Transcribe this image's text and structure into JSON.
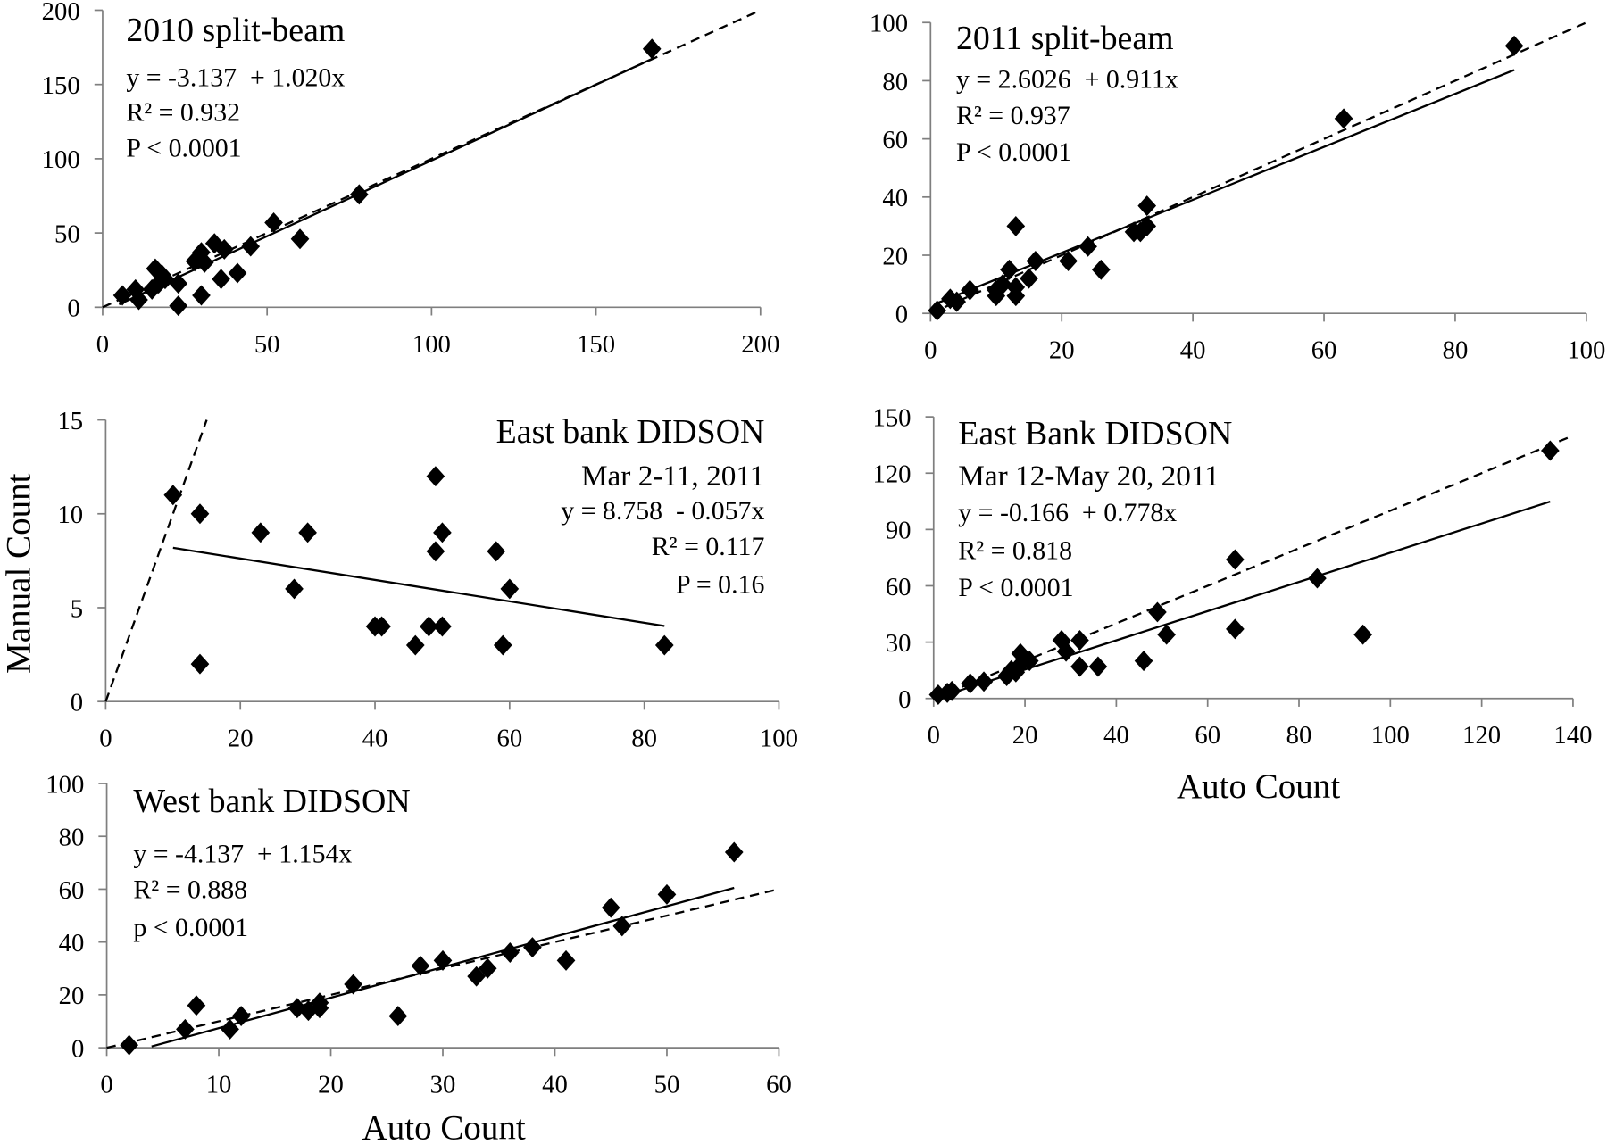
{
  "colors": {
    "points": "#000000",
    "lines": "#000000",
    "axes": "#7f7f7f",
    "background": "#ffffff"
  },
  "chart_data": [
    {
      "type": "scatter",
      "title": "2010 split-beam",
      "equation": "y = -3.137  + 1.020x",
      "r2": "R² = 0.932",
      "p": "P < 0.0001",
      "xlim": [
        0,
        200
      ],
      "ylim": [
        0,
        200
      ],
      "x_ticks": [
        0,
        50,
        100,
        150,
        200
      ],
      "y_ticks": [
        0,
        50,
        100,
        150,
        200
      ],
      "grid": false,
      "points": [
        [
          167,
          174
        ],
        [
          78,
          76
        ],
        [
          52,
          57
        ],
        [
          60,
          46
        ],
        [
          45,
          41
        ],
        [
          34,
          43
        ],
        [
          37,
          39
        ],
        [
          30,
          37
        ],
        [
          28,
          31
        ],
        [
          31,
          30
        ],
        [
          41,
          23
        ],
        [
          36,
          19
        ],
        [
          30,
          8
        ],
        [
          23,
          1
        ],
        [
          23,
          16
        ],
        [
          16,
          26
        ],
        [
          18,
          22
        ],
        [
          17,
          16
        ],
        [
          19,
          19
        ],
        [
          15,
          12
        ],
        [
          10,
          12
        ],
        [
          6,
          8
        ],
        [
          11,
          5
        ]
      ],
      "fit": {
        "intercept": -3.137,
        "slope": 1.02,
        "x_range": [
          5,
          167
        ],
        "line_style": "solid"
      },
      "reference_line": {
        "intercept": 0,
        "slope": 1,
        "x_range": [
          0,
          200
        ],
        "line_style": "dashed"
      }
    },
    {
      "type": "scatter",
      "title": "2011 split-beam",
      "equation": "y = 2.6026  + 0.911x",
      "r2": "R² = 0.937",
      "p": "P < 0.0001",
      "xlim": [
        0,
        100
      ],
      "ylim": [
        0,
        100
      ],
      "x_ticks": [
        0,
        20,
        40,
        60,
        80,
        100
      ],
      "y_ticks": [
        0,
        20,
        40,
        60,
        80,
        100
      ],
      "grid": false,
      "points": [
        [
          89,
          92
        ],
        [
          63,
          67
        ],
        [
          33,
          37
        ],
        [
          33,
          30
        ],
        [
          32,
          28
        ],
        [
          31,
          28
        ],
        [
          24,
          23
        ],
        [
          21,
          18
        ],
        [
          26,
          15
        ],
        [
          16,
          18
        ],
        [
          13,
          30
        ],
        [
          12,
          15
        ],
        [
          15,
          12
        ],
        [
          11,
          10
        ],
        [
          10,
          8
        ],
        [
          13,
          9
        ],
        [
          13,
          6
        ],
        [
          10,
          6
        ],
        [
          6,
          8
        ],
        [
          3,
          5
        ],
        [
          4,
          4
        ],
        [
          1,
          1
        ]
      ],
      "fit": {
        "intercept": 2.6026,
        "slope": 0.911,
        "x_range": [
          1,
          89
        ],
        "line_style": "solid"
      },
      "reference_line": {
        "intercept": 0,
        "slope": 1,
        "x_range": [
          0,
          100
        ],
        "line_style": "dashed"
      }
    },
    {
      "type": "scatter",
      "title": "East bank DIDSON",
      "subtitle": "Mar 2-11, 2011",
      "equation": "y = 8.758  - 0.057x",
      "r2": "R² = 0.117",
      "p": "P = 0.16",
      "ylabel": "Manual Count",
      "xlim": [
        0,
        100
      ],
      "ylim": [
        0,
        15
      ],
      "x_ticks": [
        0,
        20,
        40,
        60,
        80,
        100
      ],
      "y_ticks": [
        0,
        5,
        10,
        15
      ],
      "grid": false,
      "points": [
        [
          10,
          11
        ],
        [
          14,
          10
        ],
        [
          14,
          2
        ],
        [
          23,
          9
        ],
        [
          30,
          9
        ],
        [
          28,
          6
        ],
        [
          40,
          4
        ],
        [
          41,
          4
        ],
        [
          46,
          3
        ],
        [
          48,
          4
        ],
        [
          50,
          4
        ],
        [
          49,
          12
        ],
        [
          49,
          8
        ],
        [
          50,
          9
        ],
        [
          58,
          8
        ],
        [
          60,
          6
        ],
        [
          59,
          3
        ],
        [
          83,
          3
        ]
      ],
      "fit": {
        "intercept": 8.758,
        "slope": -0.057,
        "x_range": [
          10,
          83
        ],
        "line_style": "solid"
      },
      "reference_line": {
        "intercept": 0,
        "slope": 1,
        "x_range": [
          0,
          15
        ],
        "line_style": "dashed"
      }
    },
    {
      "type": "scatter",
      "title": "East Bank DIDSON",
      "subtitle": "Mar 12-May 20, 2011",
      "equation": "y = -0.166  + 0.778x",
      "r2": "R² = 0.818",
      "p": "P < 0.0001",
      "xlabel": "Auto Count",
      "xlim": [
        0,
        140
      ],
      "ylim": [
        0,
        150
      ],
      "x_ticks": [
        0,
        20,
        40,
        60,
        80,
        100,
        120,
        140
      ],
      "y_ticks": [
        0,
        30,
        60,
        90,
        120,
        150
      ],
      "grid": false,
      "points": [
        [
          135,
          132
        ],
        [
          84,
          64
        ],
        [
          66,
          74
        ],
        [
          66,
          37
        ],
        [
          94,
          34
        ],
        [
          49,
          46
        ],
        [
          51,
          34
        ],
        [
          46,
          20
        ],
        [
          36,
          17
        ],
        [
          32,
          17
        ],
        [
          32,
          31
        ],
        [
          28,
          31
        ],
        [
          29,
          25
        ],
        [
          19,
          24
        ],
        [
          21,
          20
        ],
        [
          19,
          18
        ],
        [
          17,
          15
        ],
        [
          16,
          12
        ],
        [
          18,
          14
        ],
        [
          11,
          9
        ],
        [
          8,
          8
        ],
        [
          4,
          4
        ],
        [
          3,
          3
        ],
        [
          1,
          2
        ]
      ],
      "fit": {
        "intercept": -0.166,
        "slope": 0.778,
        "x_range": [
          1,
          135
        ],
        "line_style": "solid"
      },
      "reference_line": {
        "intercept": 0,
        "slope": 1,
        "x_range": [
          0,
          140
        ],
        "line_style": "dashed"
      }
    },
    {
      "type": "scatter",
      "title": "West bank DIDSON",
      "equation": "y = -4.137  + 1.154x",
      "r2": "R² = 0.888",
      "p": "p < 0.0001",
      "xlabel": "Auto Count",
      "xlim": [
        0,
        60
      ],
      "ylim": [
        0,
        100
      ],
      "x_ticks": [
        0,
        10,
        20,
        30,
        40,
        50,
        60
      ],
      "y_ticks": [
        0,
        20,
        40,
        60,
        80,
        100
      ],
      "grid": false,
      "points": [
        [
          2,
          1
        ],
        [
          7,
          7
        ],
        [
          8,
          16
        ],
        [
          11,
          7
        ],
        [
          12,
          12
        ],
        [
          17,
          15
        ],
        [
          18,
          14
        ],
        [
          19,
          15
        ],
        [
          19,
          17
        ],
        [
          22,
          24
        ],
        [
          26,
          12
        ],
        [
          28,
          31
        ],
        [
          30,
          33
        ],
        [
          33,
          27
        ],
        [
          34,
          30
        ],
        [
          36,
          36
        ],
        [
          38,
          38
        ],
        [
          41,
          33
        ],
        [
          45,
          53
        ],
        [
          46,
          46
        ],
        [
          50,
          58
        ],
        [
          56,
          74
        ]
      ],
      "fit": {
        "intercept": -4.137,
        "slope": 1.154,
        "x_range": [
          4,
          56
        ],
        "line_style": "solid"
      },
      "reference_line": {
        "intercept": 0,
        "slope": 1,
        "x_range": [
          0,
          60
        ],
        "line_style": "dashed"
      }
    }
  ]
}
